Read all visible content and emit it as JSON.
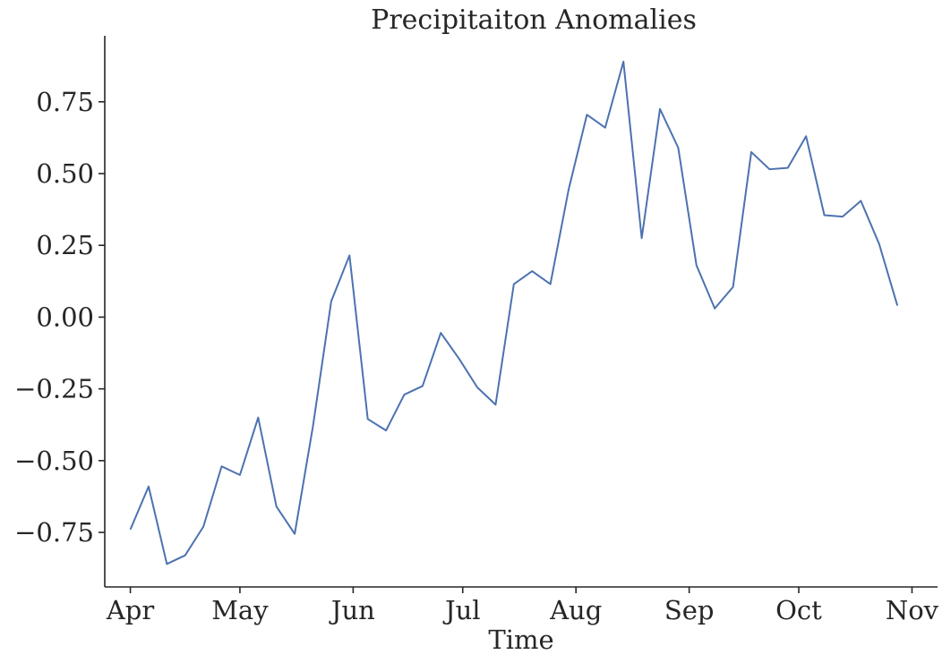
{
  "chart_data": {
    "type": "line",
    "title": "Precipitaiton Anomalies",
    "xlabel": "Time",
    "ylabel": "",
    "grid": false,
    "legend": "none",
    "x_axis_type": "date",
    "xlim": [
      "2000-03-25",
      "2000-11-08"
    ],
    "ylim": [
      -0.94,
      0.98
    ],
    "x_ticks": [
      {
        "date": "2000-04-01",
        "label": "Apr"
      },
      {
        "date": "2000-05-01",
        "label": "May"
      },
      {
        "date": "2000-06-01",
        "label": "Jun"
      },
      {
        "date": "2000-07-01",
        "label": "Jul"
      },
      {
        "date": "2000-08-01",
        "label": "Aug"
      },
      {
        "date": "2000-09-01",
        "label": "Sep"
      },
      {
        "date": "2000-10-01",
        "label": "Oct"
      },
      {
        "date": "2000-11-01",
        "label": "Nov"
      }
    ],
    "y_ticks": [
      {
        "value": -0.75,
        "label": "−0.75"
      },
      {
        "value": -0.5,
        "label": "−0.50"
      },
      {
        "value": -0.25,
        "label": "−0.25"
      },
      {
        "value": 0.0,
        "label": "0.00"
      },
      {
        "value": 0.25,
        "label": "0.25"
      },
      {
        "value": 0.5,
        "label": "0.50"
      },
      {
        "value": 0.75,
        "label": "0.75"
      }
    ],
    "series": [
      {
        "color": "#4c72b0",
        "points": [
          {
            "x": "2000-04-01",
            "y": -0.74
          },
          {
            "x": "2000-04-06",
            "y": -0.59
          },
          {
            "x": "2000-04-11",
            "y": -0.86
          },
          {
            "x": "2000-04-16",
            "y": -0.83
          },
          {
            "x": "2000-04-21",
            "y": -0.73
          },
          {
            "x": "2000-04-26",
            "y": -0.52
          },
          {
            "x": "2000-05-01",
            "y": -0.55
          },
          {
            "x": "2000-05-06",
            "y": -0.35
          },
          {
            "x": "2000-05-11",
            "y": -0.66
          },
          {
            "x": "2000-05-16",
            "y": -0.755
          },
          {
            "x": "2000-05-21",
            "y": -0.38
          },
          {
            "x": "2000-05-26",
            "y": 0.055
          },
          {
            "x": "2000-05-31",
            "y": 0.215
          },
          {
            "x": "2000-06-05",
            "y": -0.355
          },
          {
            "x": "2000-06-10",
            "y": -0.395
          },
          {
            "x": "2000-06-15",
            "y": -0.27
          },
          {
            "x": "2000-06-20",
            "y": -0.24
          },
          {
            "x": "2000-06-25",
            "y": -0.055
          },
          {
            "x": "2000-06-30",
            "y": -0.145
          },
          {
            "x": "2000-07-05",
            "y": -0.245
          },
          {
            "x": "2000-07-10",
            "y": -0.305
          },
          {
            "x": "2000-07-15",
            "y": 0.115
          },
          {
            "x": "2000-07-20",
            "y": 0.16
          },
          {
            "x": "2000-07-25",
            "y": 0.115
          },
          {
            "x": "2000-07-30",
            "y": 0.445
          },
          {
            "x": "2000-08-04",
            "y": 0.705
          },
          {
            "x": "2000-08-09",
            "y": 0.66
          },
          {
            "x": "2000-08-14",
            "y": 0.89
          },
          {
            "x": "2000-08-19",
            "y": 0.275
          },
          {
            "x": "2000-08-24",
            "y": 0.725
          },
          {
            "x": "2000-08-29",
            "y": 0.59
          },
          {
            "x": "2000-09-03",
            "y": 0.18
          },
          {
            "x": "2000-09-08",
            "y": 0.03
          },
          {
            "x": "2000-09-13",
            "y": 0.105
          },
          {
            "x": "2000-09-18",
            "y": 0.575
          },
          {
            "x": "2000-09-23",
            "y": 0.515
          },
          {
            "x": "2000-09-28",
            "y": 0.52
          },
          {
            "x": "2000-10-03",
            "y": 0.63
          },
          {
            "x": "2000-10-08",
            "y": 0.355
          },
          {
            "x": "2000-10-13",
            "y": 0.35
          },
          {
            "x": "2000-10-18",
            "y": 0.405
          },
          {
            "x": "2000-10-23",
            "y": 0.255
          },
          {
            "x": "2000-10-28",
            "y": 0.04
          }
        ]
      }
    ]
  }
}
